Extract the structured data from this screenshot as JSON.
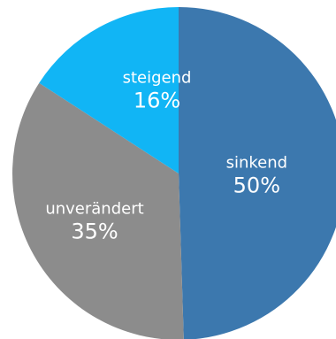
{
  "chart_data": {
    "type": "pie",
    "title": "",
    "slices": [
      {
        "label": "sinkend",
        "value": 50,
        "value_label": "50%",
        "color": "#3C78AE"
      },
      {
        "label": "unverändert",
        "value": 35,
        "value_label": "35%",
        "color": "#8C8C8C"
      },
      {
        "label": "steigend",
        "value": 16,
        "value_label": "16%",
        "color": "#11B5F5"
      }
    ],
    "start_angle_deg": 0,
    "direction": "clockwise",
    "legend": "none"
  }
}
